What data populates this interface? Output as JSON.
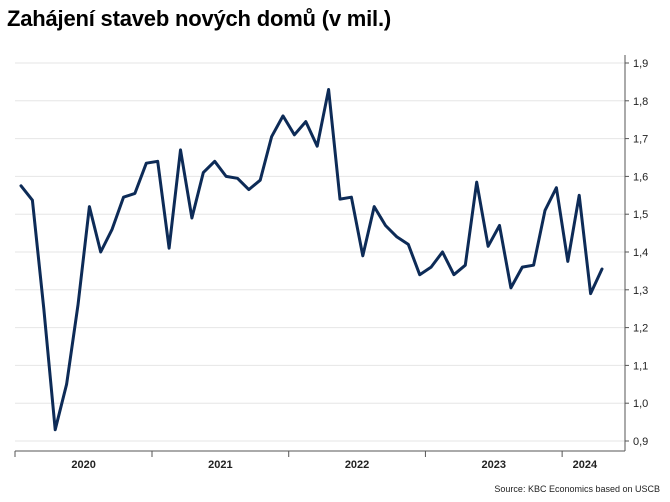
{
  "title": "Zahájení staveb nových domů (v mil.)",
  "source": "Source: KBC Economics based on USCB",
  "colors": {
    "line": "#0d2b57",
    "grid": "#e6e6e6",
    "axis": "#555555"
  },
  "chart_data": {
    "type": "line",
    "title": "Zahájení staveb nových domů (v mil.)",
    "xlabel": "",
    "ylabel": "",
    "ylim": [
      0.9,
      1.9
    ],
    "y_ticks": [
      "0,9",
      "1,0",
      "1,1",
      "1,2",
      "1,3",
      "1,4",
      "1,5",
      "1,6",
      "1,7",
      "1,8",
      "1,9"
    ],
    "y_axis_side": "right",
    "grid": true,
    "x_labels": [
      "2020",
      "2021",
      "2022",
      "2023",
      "2024"
    ],
    "x_start": "2020-01",
    "x_end": "2024-06",
    "series": [
      {
        "name": "",
        "values": [
          1.575,
          1.537,
          1.25,
          0.93,
          1.05,
          1.26,
          1.52,
          1.4,
          1.46,
          1.545,
          1.555,
          1.635,
          1.64,
          1.41,
          1.67,
          1.49,
          1.61,
          1.64,
          1.6,
          1.595,
          1.565,
          1.59,
          1.705,
          1.76,
          1.71,
          1.745,
          1.68,
          1.83,
          1.54,
          1.545,
          1.39,
          1.52,
          1.47,
          1.44,
          1.42,
          1.34,
          1.36,
          1.4,
          1.34,
          1.365,
          1.585,
          1.415,
          1.47,
          1.305,
          1.36,
          1.365,
          1.51,
          1.57,
          1.375,
          1.55,
          1.29,
          1.355
        ]
      }
    ]
  }
}
